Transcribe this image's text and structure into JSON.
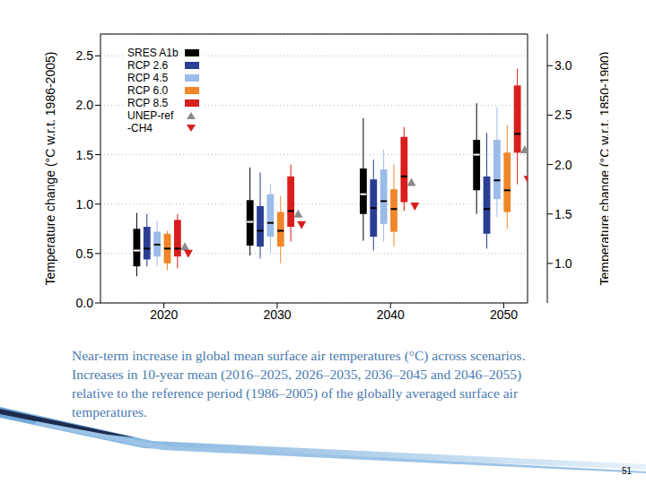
{
  "chart_data": {
    "type": "box",
    "y_label": "Temperature change (°C w.r.t. 1986-2005)",
    "y2_label": "Temperature change (°C w.r.t. 1850-1900)",
    "categories": [
      "2020",
      "2030",
      "2040",
      "2050"
    ],
    "ylim": [
      0,
      2.72
    ],
    "yticks": [
      {
        "value": 0,
        "label": "0.0"
      },
      0.5,
      {
        "value": 1,
        "label": "1.0"
      },
      1.5,
      {
        "value": 2,
        "label": "2.0"
      },
      2.5
    ],
    "y2lim": [
      0.6,
      3.32
    ],
    "y2ticks": [
      {
        "value": 1,
        "label": "1.0"
      },
      1.5,
      {
        "value": 2,
        "label": "2.0"
      },
      2.5,
      {
        "value": 3,
        "label": "3.0"
      }
    ],
    "grid": true,
    "legend": "upper left",
    "series": [
      {
        "name": "SRES A1b",
        "type": "box",
        "color": "#000000",
        "values": [
          {
            "low": 0.27,
            "q1": 0.37,
            "median": 0.53,
            "q3": 0.75,
            "high": 0.91
          },
          {
            "low": 0.48,
            "q1": 0.58,
            "median": 0.82,
            "q3": 1.04,
            "high": 1.37
          },
          {
            "low": 0.63,
            "q1": 0.9,
            "median": 1.1,
            "q3": 1.36,
            "high": 1.87
          },
          {
            "low": 0.9,
            "q1": 1.14,
            "median": 1.5,
            "q3": 1.65,
            "high": 2.02
          }
        ]
      },
      {
        "name": "RCP 2.6",
        "type": "box",
        "color": "#2a3f93",
        "values": [
          {
            "low": 0.37,
            "q1": 0.44,
            "median": 0.55,
            "q3": 0.77,
            "high": 0.9
          },
          {
            "low": 0.45,
            "q1": 0.57,
            "median": 0.73,
            "q3": 0.98,
            "high": 1.32
          },
          {
            "low": 0.53,
            "q1": 0.67,
            "median": 0.96,
            "q3": 1.25,
            "high": 1.45
          },
          {
            "low": 0.55,
            "q1": 0.7,
            "median": 0.95,
            "q3": 1.28,
            "high": 1.72
          }
        ]
      },
      {
        "name": "RCP 4.5",
        "type": "box",
        "color": "#9bbbe8",
        "values": [
          {
            "low": 0.37,
            "q1": 0.47,
            "median": 0.59,
            "q3": 0.72,
            "high": 0.83
          },
          {
            "low": 0.5,
            "q1": 0.67,
            "median": 0.81,
            "q3": 1.1,
            "high": 1.2
          },
          {
            "low": 0.62,
            "q1": 0.8,
            "median": 1.03,
            "q3": 1.35,
            "high": 1.55
          },
          {
            "low": 0.87,
            "q1": 1.05,
            "median": 1.24,
            "q3": 1.65,
            "high": 1.98
          }
        ]
      },
      {
        "name": "RCP 6.0",
        "type": "box",
        "color": "#f0862a",
        "values": [
          {
            "low": 0.33,
            "q1": 0.4,
            "median": 0.55,
            "q3": 0.7,
            "high": 0.73
          },
          {
            "low": 0.4,
            "q1": 0.57,
            "median": 0.73,
            "q3": 0.92,
            "high": 1.08
          },
          {
            "low": 0.57,
            "q1": 0.72,
            "median": 0.95,
            "q3": 1.15,
            "high": 1.4
          },
          {
            "low": 0.75,
            "q1": 0.92,
            "median": 1.14,
            "q3": 1.52,
            "high": 1.8
          }
        ]
      },
      {
        "name": "RCP 8.5",
        "type": "box",
        "color": "#d91e1e",
        "values": [
          {
            "low": 0.35,
            "q1": 0.47,
            "median": 0.55,
            "q3": 0.84,
            "high": 0.9
          },
          {
            "low": 0.62,
            "q1": 0.77,
            "median": 0.93,
            "q3": 1.28,
            "high": 1.4
          },
          {
            "low": 0.93,
            "q1": 1.02,
            "median": 1.28,
            "q3": 1.68,
            "high": 1.78
          },
          {
            "low": 1.2,
            "q1": 1.52,
            "median": 1.71,
            "q3": 2.2,
            "high": 2.37
          }
        ]
      },
      {
        "name": "UNEP-ref",
        "type": "scatter",
        "marker": "triangle-up",
        "color": "#8c8c8c",
        "values": [
          0.57,
          0.9,
          1.22,
          1.55
        ]
      },
      {
        "name": "-CH4",
        "type": "scatter",
        "marker": "triangle-down",
        "color": "#d91e1e",
        "values": [
          0.5,
          0.79,
          0.98,
          1.25
        ]
      }
    ]
  },
  "caption": "Near-term increase in global mean surface air temperatures (°C) across scenarios. Increases in 10-year mean (2016–2025, 2026–2035, 2036–2045 and 2046–2055) relative to the reference period (1986–2005) of the globally averaged surface air temperatures.",
  "page_number": "51"
}
